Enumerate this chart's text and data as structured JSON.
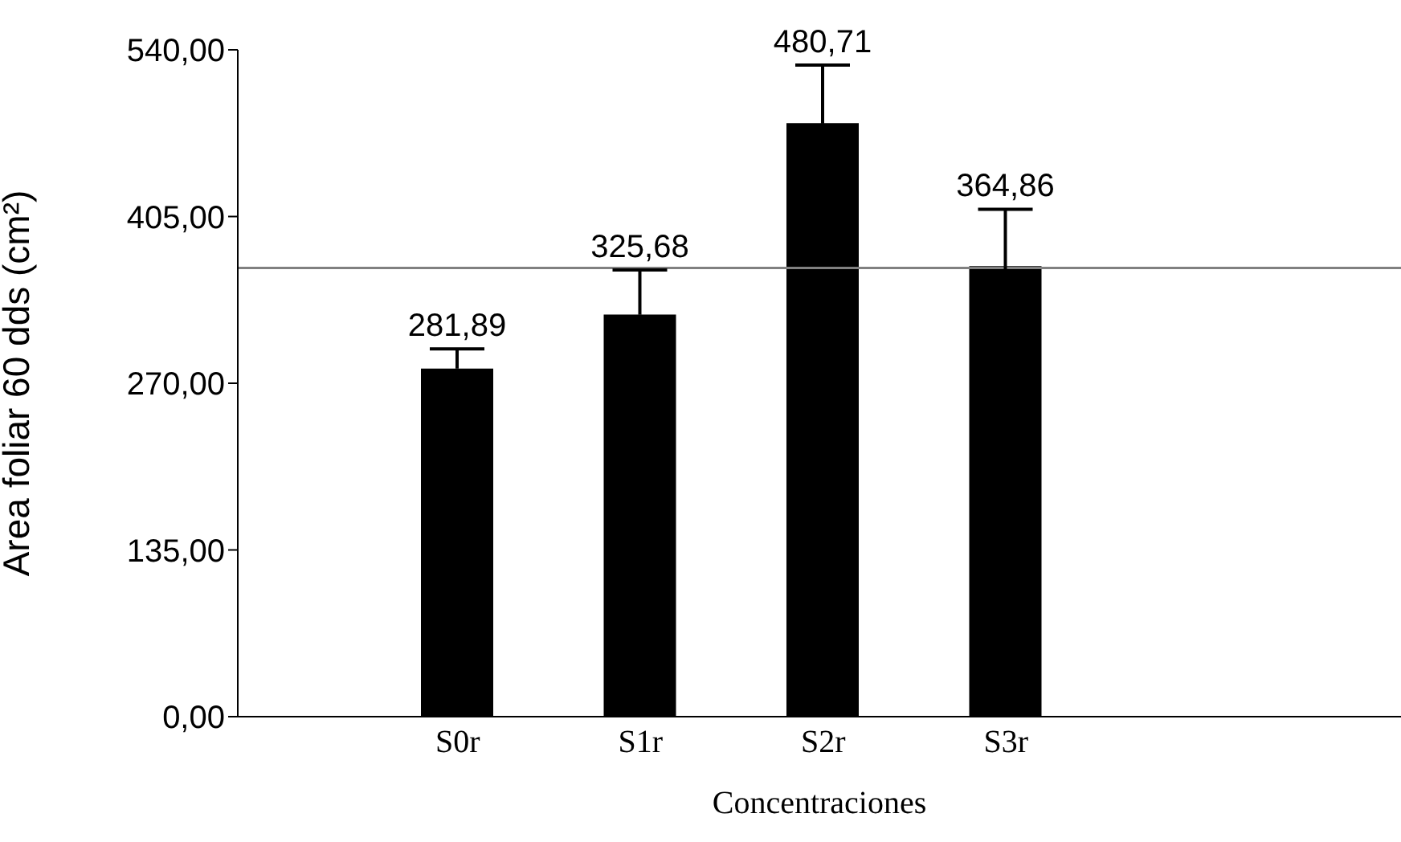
{
  "chart_data": {
    "type": "bar",
    "xlabel": "Concentraciones",
    "ylabel": "Area foliar 60 dds (cm²)",
    "categories": [
      "S0r",
      "S1r",
      "S2r",
      "S3r"
    ],
    "values": [
      281.89,
      325.68,
      480.71,
      364.86
    ],
    "value_labels": [
      "281,89",
      "325,68",
      "480,71",
      "364,86"
    ],
    "errors": [
      16,
      36,
      47,
      46
    ],
    "color": "#000000",
    "ylim": [
      0,
      540
    ],
    "yticks": [
      {
        "value": 0,
        "label": "0,00"
      },
      {
        "value": 135,
        "label": "135,00"
      },
      {
        "value": 270,
        "label": "270,00"
      },
      {
        "value": 405,
        "label": "405,00"
      },
      {
        "value": 540,
        "label": "540,00"
      }
    ],
    "ref_lines": [
      {
        "axis": "y",
        "value": 363.29,
        "label": null,
        "color": "#808080"
      }
    ],
    "grid": false,
    "legend": false
  }
}
